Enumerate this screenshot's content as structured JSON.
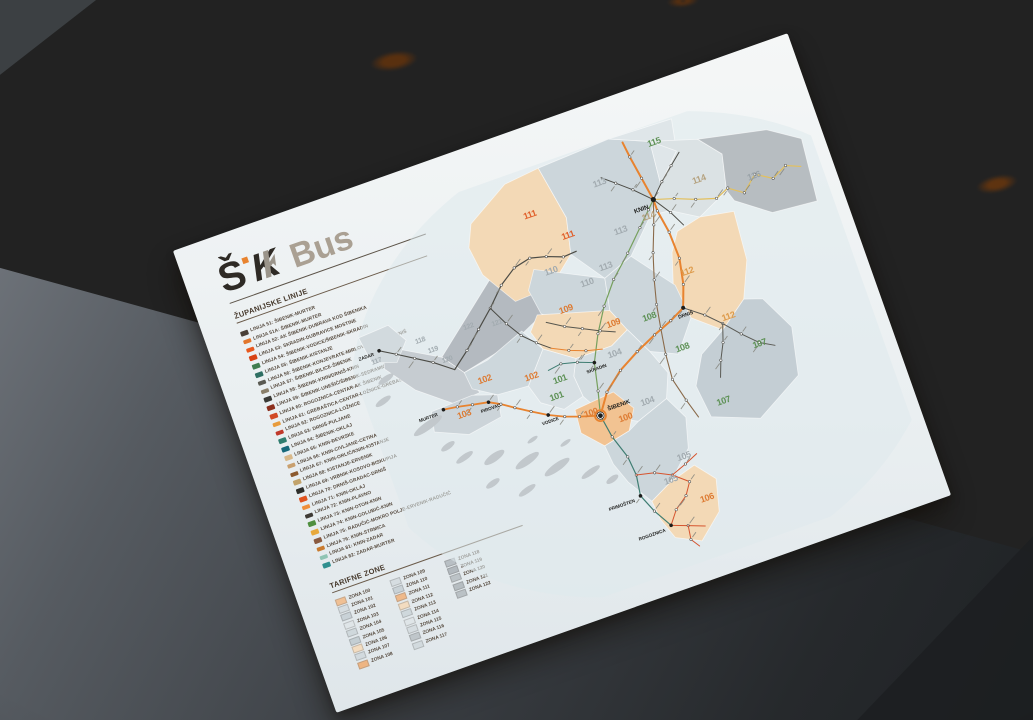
{
  "logo": {
    "s": "Š",
    "k": "K",
    "bus": "Bus"
  },
  "sections": {
    "lines_title": "ŽUPANIJSKE LINIJE",
    "zones_title": "TARIFNE ZONE"
  },
  "lines": [
    {
      "label": "LINIJA 51: ŠIBENIK-MURTER",
      "color": "#4a4038"
    },
    {
      "label": "LINIJA 51A: ŠIBENIK-MURTER",
      "color": "#e2762c"
    },
    {
      "label": "LINIJA 52: AK ŠIBENIK-DUBRAVA KOD ŠIBENIKA",
      "color": "#e8591f"
    },
    {
      "label": "LINIJA 53: SKRADIN-DUBRAVICE MOSTINE",
      "color": "#d84315"
    },
    {
      "label": "LINIJA 54: ŠIBENIK-VODICE/ŠIBENIK-SKRADIN",
      "color": "#3f7d4f"
    },
    {
      "label": "LINIJA 55: ŠIBENIK-KISTANJE",
      "color": "#2f6f63"
    },
    {
      "label": "LINIJA 56: ŠIBENIK-KONJEVRATE-MIRLOVIĆ ZAGORA-DRNIŠ",
      "color": "#5a5a52"
    },
    {
      "label": "LINIJA 57: ŠIBENIK-BILICE-ŠIBENIK",
      "color": "#8a7f6a"
    },
    {
      "label": "LINIJA 58: ŠIBENIK-KNIN/DRNIŠ-KNIN",
      "color": "#3a3a36"
    },
    {
      "label": "LINIJA 59: ŠIBENIK-UNEŠIĆ/ŠIBENIK-SEDRAMIĆ",
      "color": "#8c2f1e"
    },
    {
      "label": "LINIJA 60: ROGOZNICA-CENTAR-AK ŠIBENIK",
      "color": "#d14a26"
    },
    {
      "label": "LINIJA 61: GREBAŠTICA-CENTAR-LOŽNICE-GREBAŠTICA CENTAR",
      "color": "#e89b3c"
    },
    {
      "label": "LINIJA 62: ROGOZNICA-LOŽNICE",
      "color": "#c0392b"
    },
    {
      "label": "LINIJA 63: DRNIŠ-PULJANE",
      "color": "#2f7d6f"
    },
    {
      "label": "LINIJA 64: ŠIBENIK-OKLAJ",
      "color": "#17697a"
    },
    {
      "label": "LINIJA 65: KNIN-ĐEVRSKE",
      "color": "#d9b98a"
    },
    {
      "label": "LINIJA 66: KNIN-CIVLJANE-CETINA",
      "color": "#c9a06f"
    },
    {
      "label": "LINIJA 67: KNIN-ORLIĆ/KNIN-KISTANJE",
      "color": "#8c5a2f"
    },
    {
      "label": "LINIJA 68: KISTANJE-ERVENIK",
      "color": "#c2a36b"
    },
    {
      "label": "LINIJA 69: VRBNIK-KOSOVO-BISKUPIJA",
      "color": "#2e2e2a"
    },
    {
      "label": "LINIJA 70: DRNIŠ-GRADAC-DRNIŠ",
      "color": "#e0531f"
    },
    {
      "label": "LINIJA 71: KNIN-OKLAJ",
      "color": "#ef8e3a"
    },
    {
      "label": "LINIJA 72: KNIN-PLAVNO",
      "color": "#3f3b35"
    },
    {
      "label": "LINIJA 73: KNIN-OTON-KNIN",
      "color": "#4f8f3f"
    },
    {
      "label": "LINIJA 74: KNIN-GOLUBIĆ-KNIN",
      "color": "#e8a93c"
    },
    {
      "label": "LINIJA 75: RADUČIĆ-MOKRO POLJE-ERVENIK-RADUČIĆ",
      "color": "#8a5a3f"
    },
    {
      "label": "LINIJA 76: KNIN-STRMICA",
      "color": "#c97b2f"
    },
    {
      "label": "LINIJA 81: KNIN-ZADAR",
      "color": "#8fc4b4"
    },
    {
      "label": "LINIJA 82: ZADAR-MURTER",
      "color": "#2f8f8f"
    }
  ],
  "tariff_zones": [
    {
      "label": "ZONA 100",
      "color": "#f0c094"
    },
    {
      "label": "ZONA 101",
      "color": "#d6dde1"
    },
    {
      "label": "ZONA 102",
      "color": "#c9d2d7"
    },
    {
      "label": "ZONA 103",
      "color": "#dfe5e8"
    },
    {
      "label": "ZONA 104",
      "color": "#cfd8dc"
    },
    {
      "label": "ZONA 105",
      "color": "#c4ced3"
    },
    {
      "label": "ZONA 106",
      "color": "#f3dcc0"
    },
    {
      "label": "ZONA 107",
      "color": "#d2dade"
    },
    {
      "label": "ZONA 108",
      "color": "#eeb583"
    },
    {
      "label": "ZONA 109",
      "color": "#d6dde1"
    },
    {
      "label": "ZONA 110",
      "color": "#c9d2d7"
    },
    {
      "label": "ZONA 111",
      "color": "#efb98a"
    },
    {
      "label": "ZONA 112",
      "color": "#f3dcc0"
    },
    {
      "label": "ZONA 113",
      "color": "#cfd8dc"
    },
    {
      "label": "ZONA 114",
      "color": "#dfe5e8"
    },
    {
      "label": "ZONA 115",
      "color": "#d6dde1"
    },
    {
      "label": "ZONA 116",
      "color": "#bfc6ca"
    },
    {
      "label": "ZONA 117",
      "color": "#d2dade"
    },
    {
      "label": "ZONA 118",
      "color": "#b8bfc4"
    },
    {
      "label": "ZONA 119",
      "color": "#b2b9be"
    },
    {
      "label": "ZONA 120",
      "color": "#bcc3c7"
    },
    {
      "label": "ZONA 121",
      "color": "#b6bdc1"
    },
    {
      "label": "ZONA 122",
      "color": "#bac1c5"
    }
  ],
  "map": {
    "towns": [
      "ZADAR",
      "MURTER",
      "PIROVAC",
      "VODICE",
      "SKRADIN",
      "ŠIBENIK",
      "DRNIŠ",
      "KNIN",
      "PRIMOŠTEN",
      "ROGOZNICA"
    ],
    "zone_numbers": [
      "100",
      "101",
      "102",
      "103",
      "104",
      "105",
      "106",
      "107",
      "108",
      "109",
      "110",
      "111",
      "112",
      "113",
      "114",
      "115",
      "116",
      "117",
      "118",
      "119",
      "120",
      "121",
      "122"
    ],
    "zone_number_colors": {
      "100": "#dd7b33",
      "101": "#5d9155",
      "102": "#dd7b33",
      "103": "#dd7b33",
      "104": "#a2abb0",
      "105": "#a2abb0",
      "106": "#dd7b33",
      "107": "#5d9155",
      "108": "#5d9155",
      "109": "#dd7b33",
      "110": "#a2abb0",
      "111": "#e05f2a",
      "112": "#dd9a4a",
      "113": "#a2abb0",
      "114": "#b5a27f",
      "115": "#5d9155",
      "116": "#9aa3a8",
      "117": "#a2abb0",
      "118": "#a2abb0",
      "119": "#a2abb0",
      "120": "#a2abb0",
      "121": "#a2abb0",
      "122": "#a2abb0"
    }
  }
}
